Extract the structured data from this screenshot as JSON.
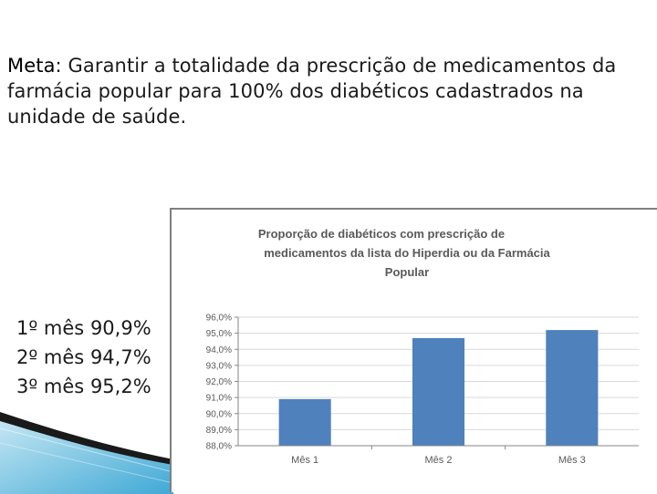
{
  "meta": {
    "label": "Meta",
    "text": ": Garantir a totalidade da prescrição de medicamentos da farmácia popular para 100% dos diabéticos cadastrados na unidade de saúde."
  },
  "stats": [
    {
      "month": "1º mês",
      "value": "90,9%"
    },
    {
      "month": "2º mês",
      "value": "94,7%"
    },
    {
      "month": "3º mês",
      "value": "95,2%"
    }
  ],
  "colors": {
    "bar": "#4f81bd",
    "grid": "#d9d9d9",
    "axis": "#868686"
  },
  "chart_data": {
    "type": "bar",
    "title_lines": [
      "Proporção de diabéticos com prescrição de",
      "medicamentos  da lista do Hiperdia ou da Farmácia",
      "Popular"
    ],
    "categories": [
      "Mês 1",
      "Mês 2",
      "Mês 3"
    ],
    "values": [
      90.9,
      94.7,
      95.2
    ],
    "ylim": [
      88.0,
      96.0
    ],
    "yticks": [
      88.0,
      89.0,
      90.0,
      91.0,
      92.0,
      93.0,
      94.0,
      95.0,
      96.0
    ],
    "ytick_labels": [
      "88,0%",
      "89,0%",
      "90,0%",
      "91,0%",
      "92,0%",
      "93,0%",
      "94,0%",
      "95,0%",
      "96,0%"
    ],
    "grid": true,
    "legend": "none"
  }
}
